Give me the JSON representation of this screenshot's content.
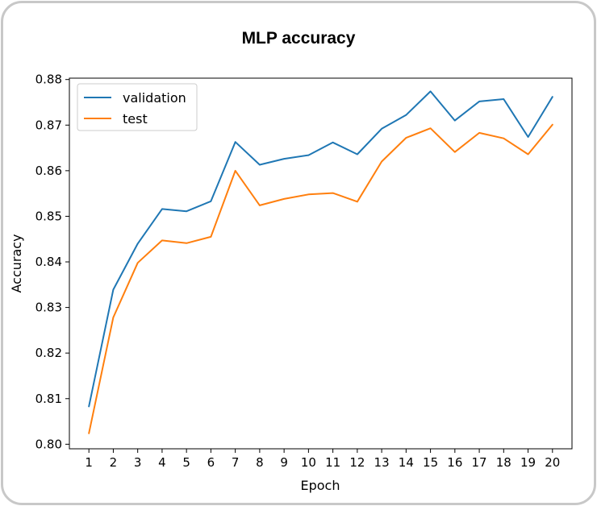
{
  "chart_data": {
    "type": "line",
    "title": "MLP accuracy",
    "xlabel": "Epoch",
    "ylabel": "Accuracy",
    "x": [
      1,
      2,
      3,
      4,
      5,
      6,
      7,
      8,
      9,
      10,
      11,
      12,
      13,
      14,
      15,
      16,
      17,
      18,
      19,
      20
    ],
    "xlim": [
      0.2,
      20.8
    ],
    "ylim": [
      0.799,
      0.8803
    ],
    "yticks": [
      0.8,
      0.81,
      0.82,
      0.83,
      0.84,
      0.85,
      0.86,
      0.87,
      0.88
    ],
    "ytick_labels": [
      "0.80",
      "0.81",
      "0.82",
      "0.83",
      "0.84",
      "0.85",
      "0.86",
      "0.87",
      "0.88"
    ],
    "xtick_labels": [
      "1",
      "2",
      "3",
      "4",
      "5",
      "6",
      "7",
      "8",
      "9",
      "10",
      "11",
      "12",
      "13",
      "14",
      "15",
      "16",
      "17",
      "18",
      "19",
      "20"
    ],
    "grid": false,
    "legend_position": "top-left",
    "series": [
      {
        "name": "validation",
        "color": "#1f77b4",
        "values": [
          0.8083,
          0.8339,
          0.844,
          0.8516,
          0.8511,
          0.8533,
          0.8663,
          0.8613,
          0.8626,
          0.8634,
          0.8662,
          0.8636,
          0.8692,
          0.8722,
          0.8774,
          0.871,
          0.8752,
          0.8757,
          0.8674,
          0.8762
        ]
      },
      {
        "name": "test",
        "color": "#ff7f0e",
        "values": [
          0.8024,
          0.8278,
          0.8398,
          0.8447,
          0.8441,
          0.8455,
          0.86,
          0.8524,
          0.8538,
          0.8548,
          0.8551,
          0.8532,
          0.862,
          0.8672,
          0.8693,
          0.8641,
          0.8683,
          0.8671,
          0.8636,
          0.8701
        ]
      }
    ]
  }
}
